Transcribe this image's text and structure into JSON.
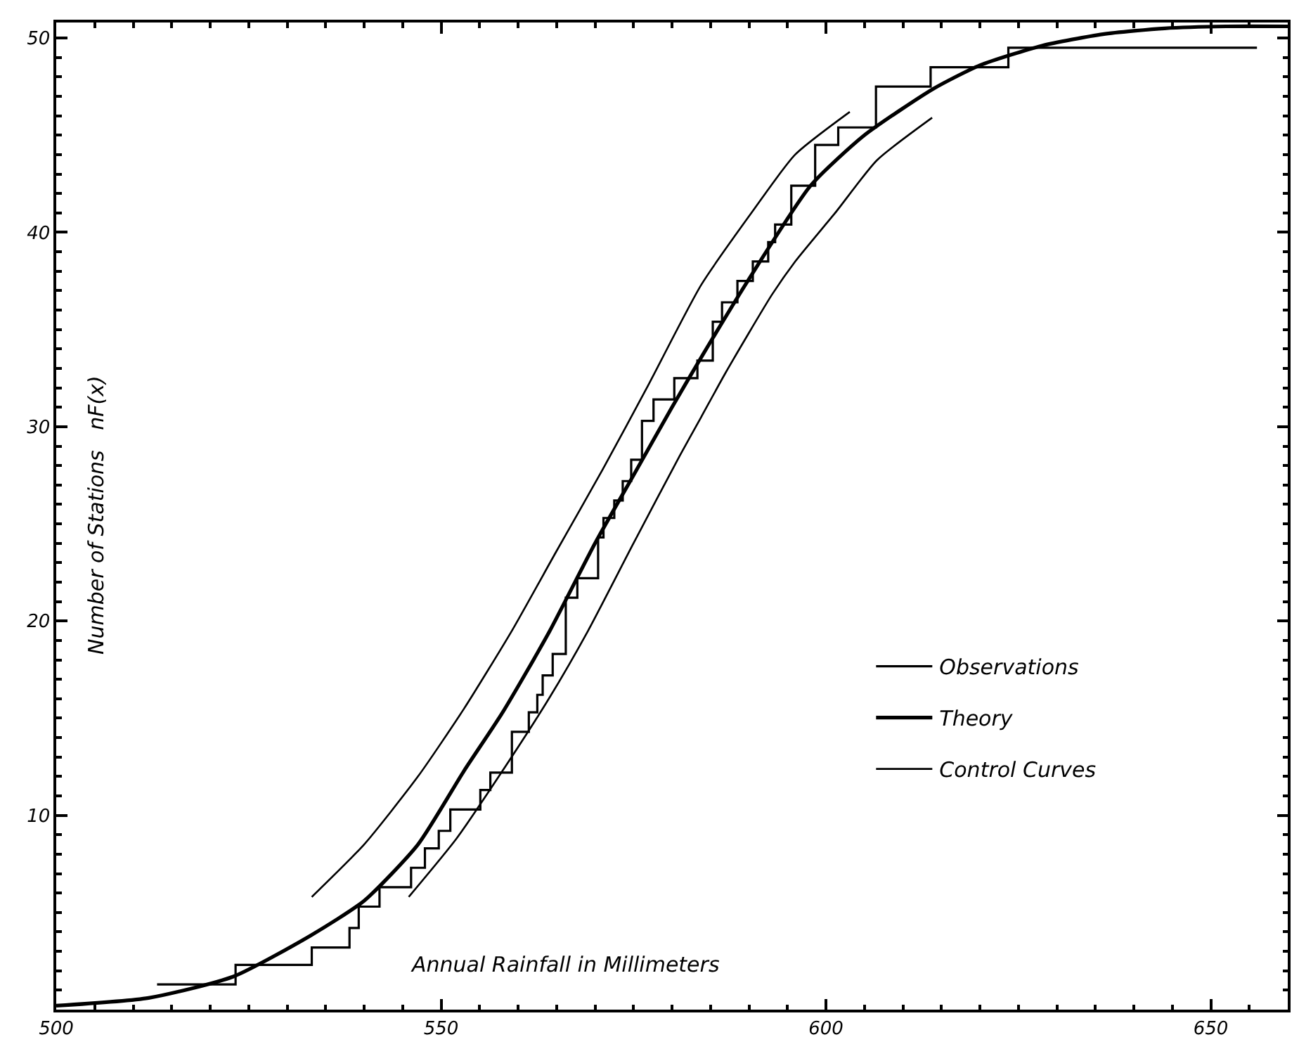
{
  "chart_data": {
    "type": "line",
    "xlabel": "Annual Rainfall in Millimeters",
    "ylabel": "Number of Stations   nF(x)",
    "xlim": [
      500,
      660
    ],
    "ylim": [
      0,
      50.8
    ],
    "xticks": [
      500,
      550,
      600,
      650
    ],
    "yticks": [
      10,
      20,
      30,
      40,
      50
    ],
    "legend": "bottom right",
    "marker": "none",
    "line_style": "solid",
    "series": [
      {
        "name": "Observations",
        "type": "step",
        "color": "#000000",
        "x": [
          513.1,
          523.3,
          533.2,
          538.1,
          539.3,
          542.0,
          546.1,
          547.9,
          549.7,
          551.2,
          555.1,
          556.4,
          559.2,
          561.4,
          562.5,
          563.2,
          564.5,
          566.2,
          567.7,
          570.4,
          571.1,
          572.5,
          573.6,
          574.7,
          576.1,
          577.6,
          580.3,
          583.3,
          585.3,
          586.5,
          588.5,
          590.5,
          592.5,
          593.4,
          595.5,
          598.6,
          601.6,
          606.5,
          613.6,
          623.7,
          656.0
        ],
        "values": [
          1.3,
          2.3,
          3.2,
          4.2,
          5.3,
          6.3,
          7.3,
          8.3,
          9.2,
          10.3,
          11.3,
          12.2,
          14.3,
          15.3,
          16.2,
          17.2,
          18.3,
          21.2,
          22.2,
          24.3,
          25.3,
          26.2,
          27.2,
          28.3,
          30.3,
          31.4,
          32.5,
          33.4,
          35.4,
          36.4,
          37.5,
          38.5,
          39.5,
          40.4,
          42.4,
          44.5,
          45.4,
          47.5,
          48.5,
          49.5,
          49.5
        ]
      },
      {
        "name": "Theory",
        "color": "#000000",
        "x": [
          500,
          512,
          523,
          533,
          540,
          547,
          553,
          558,
          564,
          570,
          575,
          580,
          584,
          590,
          598,
          605,
          614,
          620,
          628,
          636,
          644,
          652,
          660
        ],
        "values": [
          0.2,
          0.6,
          1.7,
          3.8,
          5.6,
          8.5,
          12.3,
          15.3,
          19.4,
          24.0,
          27.5,
          31.0,
          33.7,
          37.6,
          42.4,
          45.0,
          47.4,
          48.6,
          49.6,
          50.2,
          50.5,
          50.6,
          50.6
        ]
      },
      {
        "name": "Control Curves",
        "color": "#000000",
        "x": [
          533.2,
          540,
          547,
          553,
          559.2,
          565,
          571,
          577,
          583.8,
          590.5,
          596,
          603.1
        ],
        "values": [
          5.8,
          8.5,
          12.0,
          15.5,
          19.5,
          23.6,
          27.8,
          32.2,
          37.3,
          41.1,
          44.0,
          46.2
        ]
      },
      {
        "color": "#000000",
        "x": [
          545.8,
          552,
          558,
          564,
          569.1,
          575,
          581,
          583.8,
          587,
          593,
          596,
          601.4,
          606.6,
          613.8
        ],
        "values": [
          5.8,
          8.8,
          12.3,
          16.0,
          19.5,
          24.0,
          28.5,
          30.5,
          32.8,
          36.8,
          38.5,
          41.1,
          43.7,
          45.9
        ]
      }
    ]
  }
}
